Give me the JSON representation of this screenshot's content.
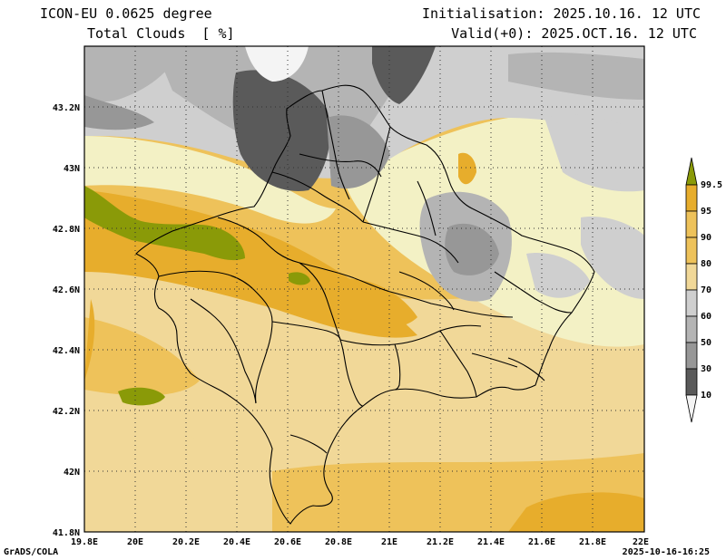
{
  "header": {
    "model_line": "ICON-EU 0.0625 degree",
    "field_line": "Total Clouds  [ %]",
    "init_line": "Initialisation: 2025.10.16. 12 UTC",
    "valid_line": "Valid(+0): 2025.OCT.16. 12 UTC"
  },
  "footer": {
    "credit": "GrADS/COLA",
    "timestamp": "2025-10-16-16:25"
  },
  "axes": {
    "lat_labels": [
      "43.2N",
      "43N",
      "42.8N",
      "42.6N",
      "42.4N",
      "42.2N",
      "42N",
      "41.8N"
    ],
    "lon_labels": [
      "19.8E",
      "20E",
      "20.2E",
      "20.4E",
      "20.6E",
      "20.8E",
      "21E",
      "21.2E",
      "21.4E",
      "21.6E",
      "21.8E",
      "22E"
    ]
  },
  "colorbar": {
    "labels": [
      "99.5",
      "95",
      "90",
      "80",
      "70",
      "60",
      "50",
      "30",
      "10"
    ],
    "colors": {
      "above_99_5": "#8a9a08",
      "95_99_5": "#e7ad2c",
      "90_95": "#eec25a",
      "80_90": "#f1d898",
      "70_80": "#f3f1c5",
      "60_70": "#cfcfcf",
      "50_60": "#b4b4b4",
      "30_50": "#979797",
      "10_30": "#5a5a5a",
      "below_10": "#f4f4f4"
    }
  }
}
